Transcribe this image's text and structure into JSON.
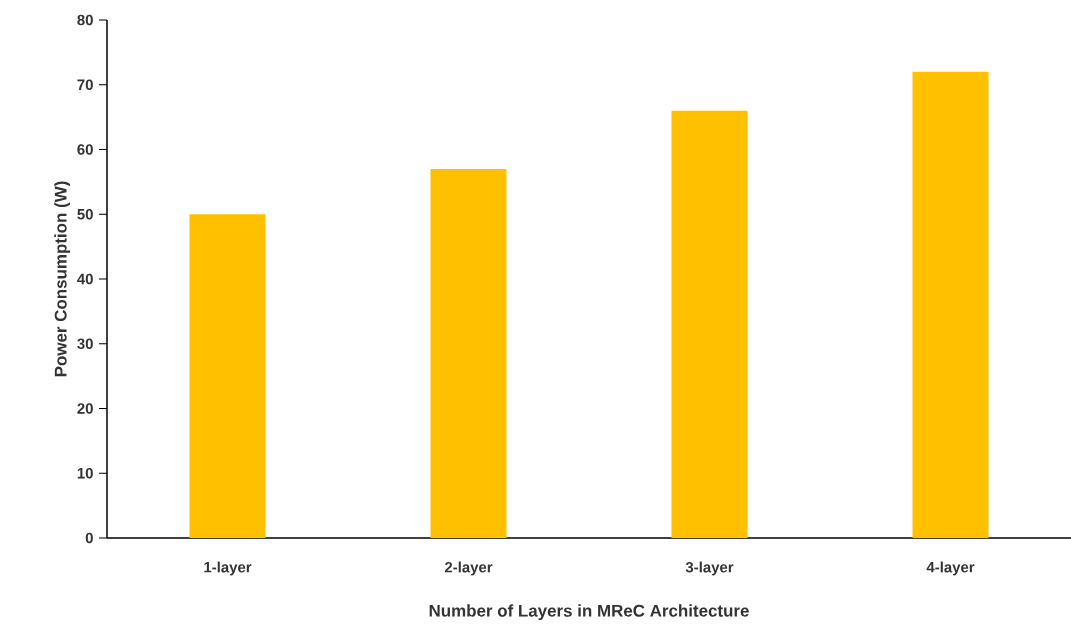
{
  "chart_data": {
    "type": "bar",
    "xlabel": "Number of Layers in MReC Architecture",
    "ylabel": "Power Consumption (W)",
    "categories": [
      "1-layer",
      "2-layer",
      "3-layer",
      "4-layer"
    ],
    "values": [
      50,
      57,
      66,
      72
    ],
    "color": "#ffc000",
    "ylim": [
      0,
      80
    ],
    "yticks": [
      0,
      10,
      20,
      30,
      40,
      50,
      60,
      70,
      80
    ]
  }
}
